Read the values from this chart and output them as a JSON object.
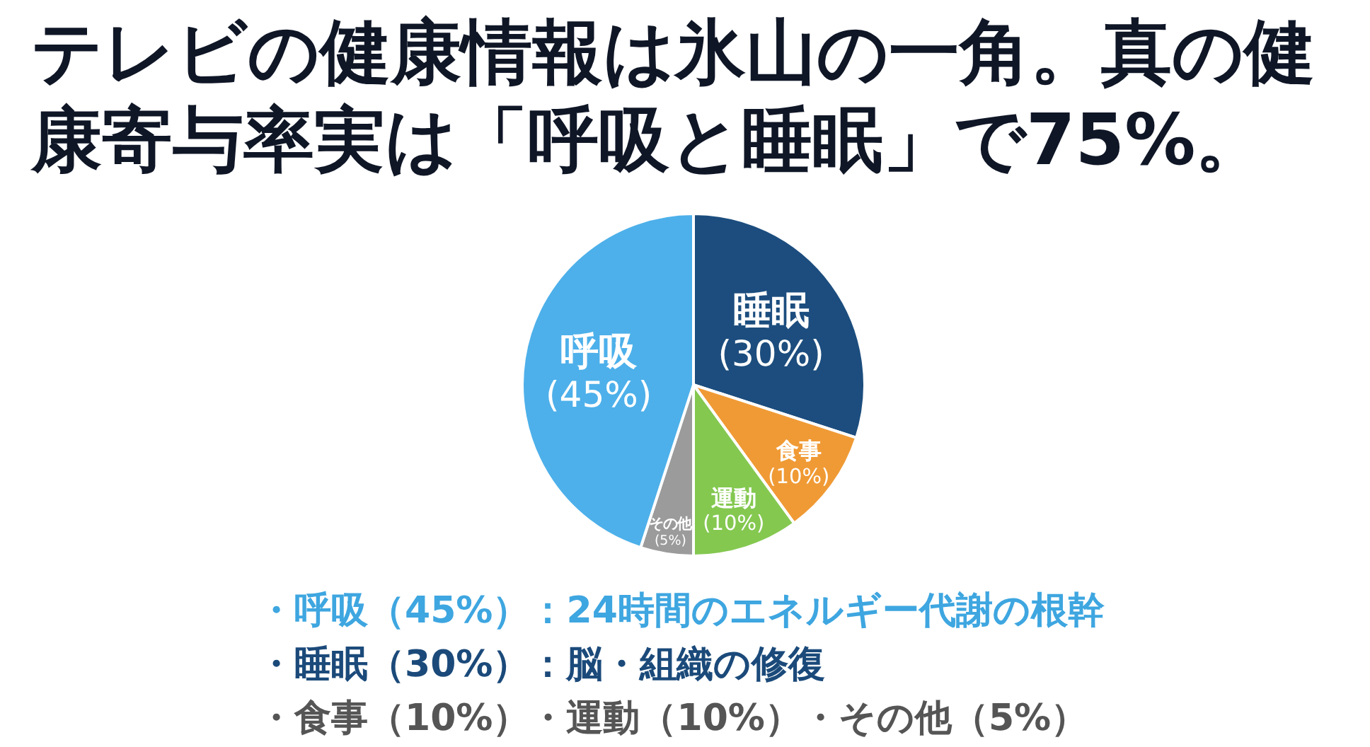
{
  "chart_data": {
    "type": "pie",
    "title": "テレビの健康情報は氷山の一角。真の健康寄与率実は「呼吸と睡眠」で75%。",
    "categories": [
      "睡眠",
      "食事",
      "運動",
      "その他",
      "呼吸"
    ],
    "values": [
      30,
      10,
      10,
      5,
      45
    ],
    "colors": [
      "#1c4d7e",
      "#f09a35",
      "#84c850",
      "#9b9b9b",
      "#4db0ea"
    ],
    "value_labels": [
      "(30%)",
      "(10%)",
      "(10%)",
      "(5%)",
      "(45%)"
    ],
    "annotations": [
      "・呼吸（45%）：24時間のエネルギー代謝の根幹",
      "・睡眠（30%）：脳・組織の修復",
      "・食事（10%）・運動（10%）・その他（5%）"
    ]
  }
}
